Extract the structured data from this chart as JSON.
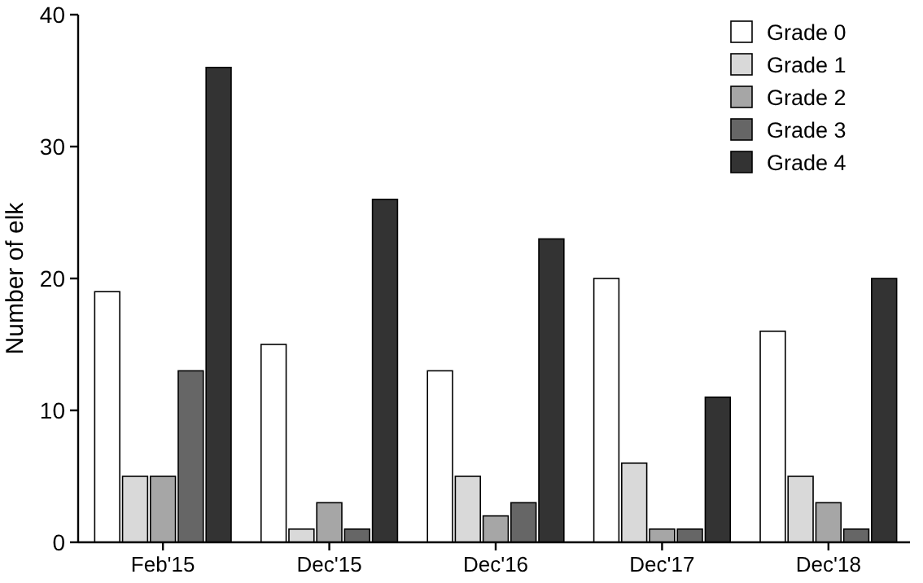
{
  "chart_data": {
    "type": "bar",
    "ylabel": "Number of elk",
    "categories": [
      "Feb'15",
      "Dec'15",
      "Dec'16",
      "Dec'17",
      "Dec'18"
    ],
    "series": [
      {
        "name": "Grade 0",
        "color": "#ffffff",
        "values": [
          19,
          15,
          13,
          20,
          16
        ]
      },
      {
        "name": "Grade 1",
        "color": "#d9d9d9",
        "values": [
          5,
          1,
          5,
          6,
          5
        ]
      },
      {
        "name": "Grade 2",
        "color": "#a6a6a6",
        "values": [
          5,
          3,
          2,
          1,
          3
        ]
      },
      {
        "name": "Grade 3",
        "color": "#666666",
        "values": [
          13,
          1,
          3,
          1,
          1
        ]
      },
      {
        "name": "Grade 4",
        "color": "#333333",
        "values": [
          36,
          26,
          23,
          11,
          20
        ]
      }
    ],
    "ylim": [
      0,
      40
    ],
    "yticks": [
      0,
      10,
      20,
      30,
      40
    ],
    "grid": false,
    "legend": "top right"
  }
}
